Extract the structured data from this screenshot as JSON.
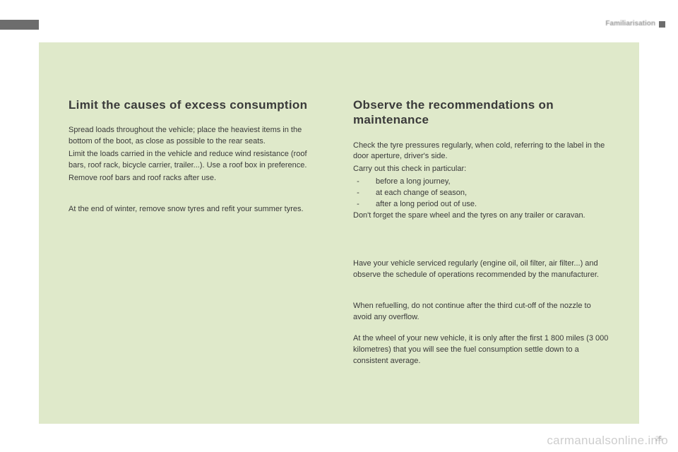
{
  "header": {
    "section_label": "Familiarisation"
  },
  "left": {
    "title": "Limit the causes of excess consumption",
    "p1": "Spread loads throughout the vehicle; place the heaviest items in the bottom of the boot, as close as possible to the rear seats.",
    "p2": "Limit the loads carried in the vehicle and reduce wind resistance (roof bars, roof rack, bicycle carrier, trailer...). Use a roof box in preference.",
    "p3": "Remove roof bars and roof racks after use.",
    "p4": "At the end of winter, remove snow tyres and refit your summer tyres."
  },
  "right": {
    "title": "Observe the recommendations on maintenance",
    "p1": "Check the tyre pressures regularly, when cold, referring to the label in the door aperture, driver's side.",
    "p2": "Carry out this check in particular:",
    "bullets": [
      "before a long journey,",
      "at each change of season,",
      "after a long period out of use."
    ],
    "p3": "Don't forget the spare wheel and the tyres on any trailer or caravan.",
    "p4": "Have your vehicle serviced regularly (engine oil, oil filter, air filter...) and observe the schedule of operations recommended by the manufacturer.",
    "p5": "When refuelling, do not continue after the third cut-off of the nozzle to avoid any overflow.",
    "p6": "At the wheel of your new vehicle, it is only after the first 1 800 miles (3 000 kilometres) that you will see the fuel consumption settle down to a consistent average."
  },
  "footer": {
    "watermark": "carmanualsonline.info",
    "page": "25"
  },
  "style": {
    "content_bg": "#dfe9ca",
    "text_color": "#3a3a3a",
    "heading_fontsize": 17,
    "body_fontsize": 11
  }
}
